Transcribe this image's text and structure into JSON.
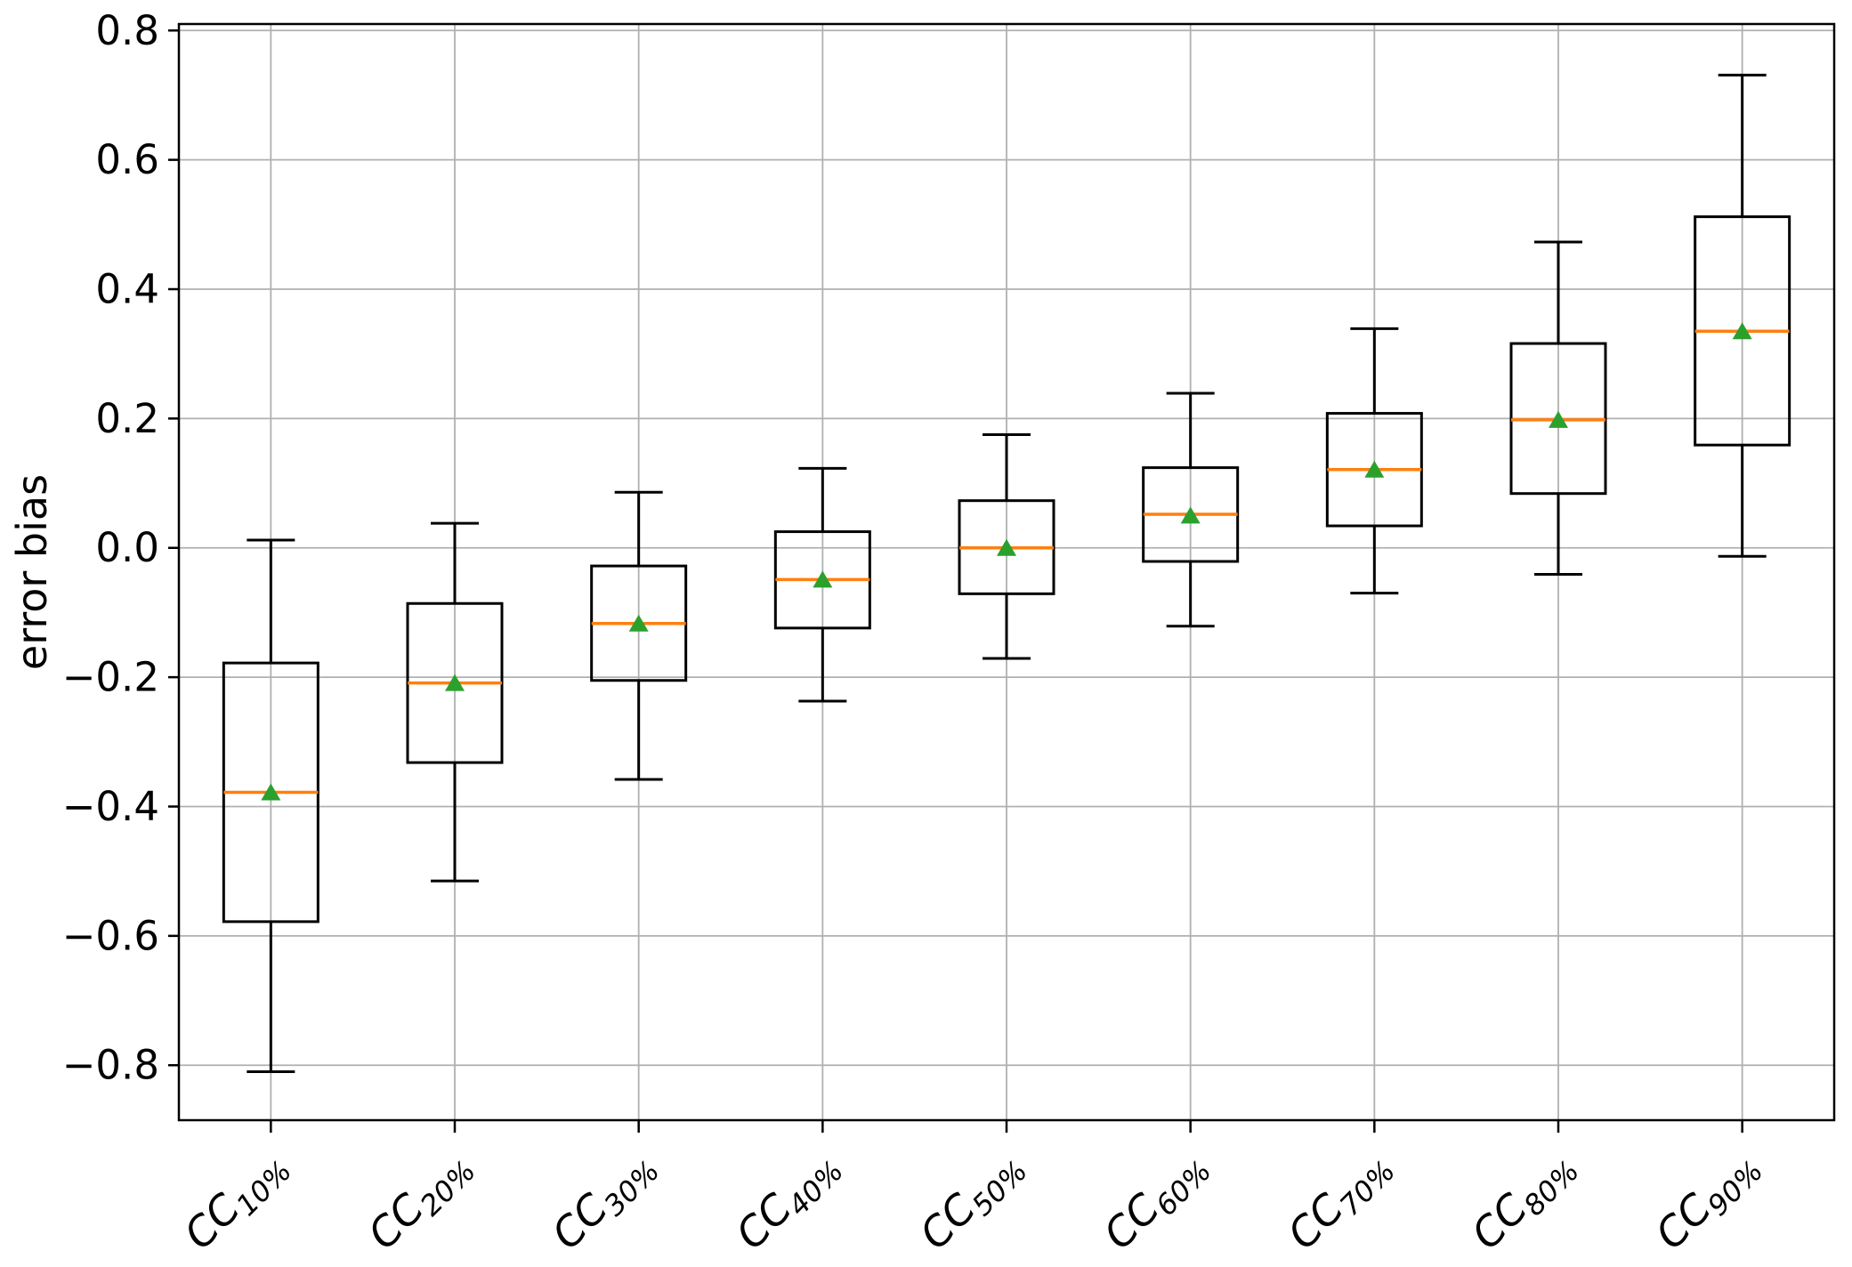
{
  "figure": {
    "background": "#ffffff",
    "colors": {
      "median": "#ff7f0e",
      "mean_marker": "#2ca02c",
      "box_stroke": "#000000",
      "whisker_stroke": "#000000",
      "grid": "#b0b0b0",
      "spine": "#000000",
      "text": "#000000"
    }
  },
  "chart_data": {
    "type": "boxplot",
    "title": "",
    "xlabel": "",
    "ylabel": "error bias",
    "ylim": [
      -0.885,
      0.81
    ],
    "xlim": [
      0.5,
      9.5
    ],
    "grid": true,
    "legend": "none",
    "yticks": [
      0.8,
      0.6,
      0.4,
      0.2,
      0.0,
      -0.2,
      -0.4,
      -0.6,
      -0.8
    ],
    "ytick_labels": [
      "0.8",
      "0.6",
      "0.4",
      "0.2",
      "0.0",
      "−0.2",
      "−0.4",
      "−0.6",
      "−0.8"
    ],
    "categories": [
      "CC10%",
      "CC20%",
      "CC30%",
      "CC40%",
      "CC50%",
      "CC60%",
      "CC70%",
      "CC80%",
      "CC90%"
    ],
    "category_labels": [
      {
        "base": "CC",
        "sub": "10%"
      },
      {
        "base": "CC",
        "sub": "20%"
      },
      {
        "base": "CC",
        "sub": "30%"
      },
      {
        "base": "CC",
        "sub": "40%"
      },
      {
        "base": "CC",
        "sub": "50%"
      },
      {
        "base": "CC",
        "sub": "60%"
      },
      {
        "base": "CC",
        "sub": "70%"
      },
      {
        "base": "CC",
        "sub": "80%"
      },
      {
        "base": "CC",
        "sub": "90%"
      }
    ],
    "series": [
      {
        "label": "CC10%",
        "whislo": -0.81,
        "q1": -0.578,
        "med": -0.378,
        "q3": -0.178,
        "whishi": 0.012,
        "mean": -0.378
      },
      {
        "label": "CC20%",
        "whislo": -0.515,
        "q1": -0.332,
        "med": -0.209,
        "q3": -0.086,
        "whishi": 0.038,
        "mean": -0.209
      },
      {
        "label": "CC30%",
        "whislo": -0.358,
        "q1": -0.205,
        "med": -0.117,
        "q3": -0.028,
        "whishi": 0.086,
        "mean": -0.117
      },
      {
        "label": "CC40%",
        "whislo": -0.237,
        "q1": -0.124,
        "med": -0.049,
        "q3": 0.025,
        "whishi": 0.123,
        "mean": -0.049
      },
      {
        "label": "CC50%",
        "whislo": -0.171,
        "q1": -0.071,
        "med": 0.0,
        "q3": 0.073,
        "whishi": 0.175,
        "mean": 0.0
      },
      {
        "label": "CC60%",
        "whislo": -0.121,
        "q1": -0.021,
        "med": 0.052,
        "q3": 0.124,
        "whishi": 0.239,
        "mean": 0.05
      },
      {
        "label": "CC70%",
        "whislo": -0.07,
        "q1": 0.034,
        "med": 0.121,
        "q3": 0.208,
        "whishi": 0.339,
        "mean": 0.121
      },
      {
        "label": "CC80%",
        "whislo": -0.041,
        "q1": 0.084,
        "med": 0.198,
        "q3": 0.316,
        "whishi": 0.473,
        "mean": 0.198
      },
      {
        "label": "CC90%",
        "whislo": -0.013,
        "q1": 0.159,
        "med": 0.335,
        "q3": 0.512,
        "whishi": 0.731,
        "mean": 0.335
      }
    ]
  }
}
